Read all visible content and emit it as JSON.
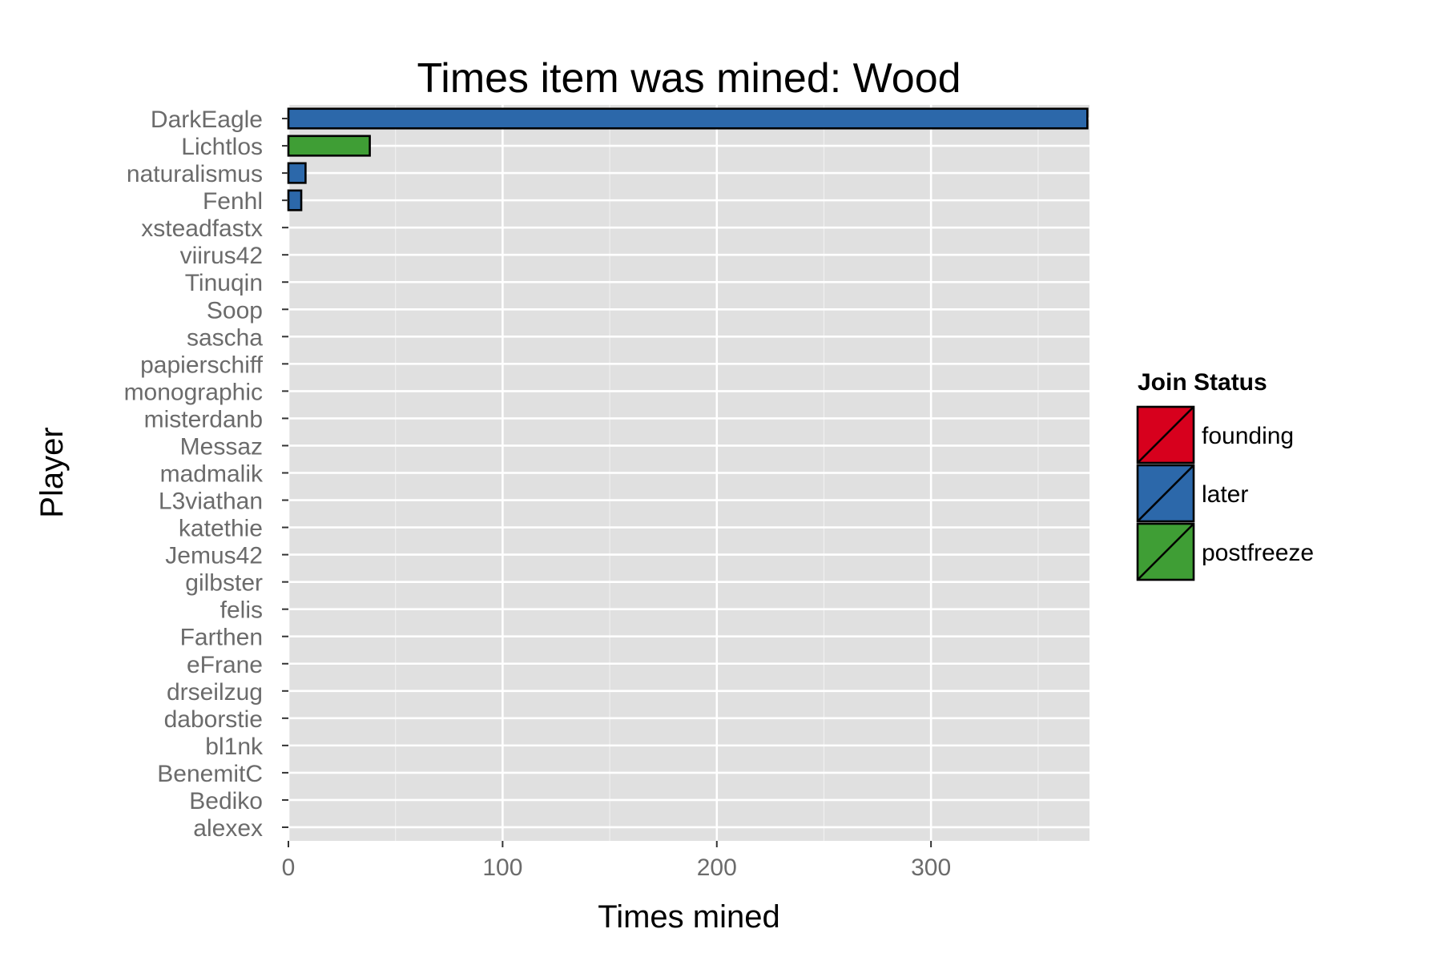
{
  "chart_data": {
    "type": "bar",
    "orientation": "horizontal",
    "title": "Times item was mined: Wood",
    "xlabel": "Times mined",
    "ylabel": "Player",
    "xlim": [
      0,
      374
    ],
    "xticks": [
      0,
      100,
      200,
      300
    ],
    "grid": true,
    "legend_position": "right",
    "legend": {
      "title": "Join Status",
      "entries": [
        {
          "name": "founding",
          "color": "#d7001d"
        },
        {
          "name": "later",
          "color": "#2c68aa"
        },
        {
          "name": "postfreeze",
          "color": "#3f9e35"
        }
      ]
    },
    "categories": [
      "DarkEagle",
      "Lichtlos",
      "naturalismus",
      "Fenhl",
      "xsteadfastx",
      "viirus42",
      "Tinuqin",
      "Soop",
      "sascha",
      "papierschiff",
      "monographic",
      "misterdanb",
      "Messaz",
      "madmalik",
      "L3viathan",
      "katethie",
      "Jemus42",
      "gilbster",
      "felis",
      "Farthen",
      "eFrane",
      "drseilzug",
      "daborstie",
      "bl1nk",
      "BenemitC",
      "Bediko",
      "alexex"
    ],
    "values": [
      373,
      38,
      8,
      6,
      0,
      0,
      0,
      0,
      0,
      0,
      0,
      0,
      0,
      0,
      0,
      0,
      0,
      0,
      0,
      0,
      0,
      0,
      0,
      0,
      0,
      0,
      0
    ],
    "status": [
      "later",
      "postfreeze",
      "later",
      "later",
      "",
      "",
      "",
      "",
      "",
      "",
      "",
      "",
      "",
      "",
      "",
      "",
      "",
      "",
      "",
      "",
      "",
      "",
      "",
      "",
      "",
      "",
      ""
    ]
  }
}
